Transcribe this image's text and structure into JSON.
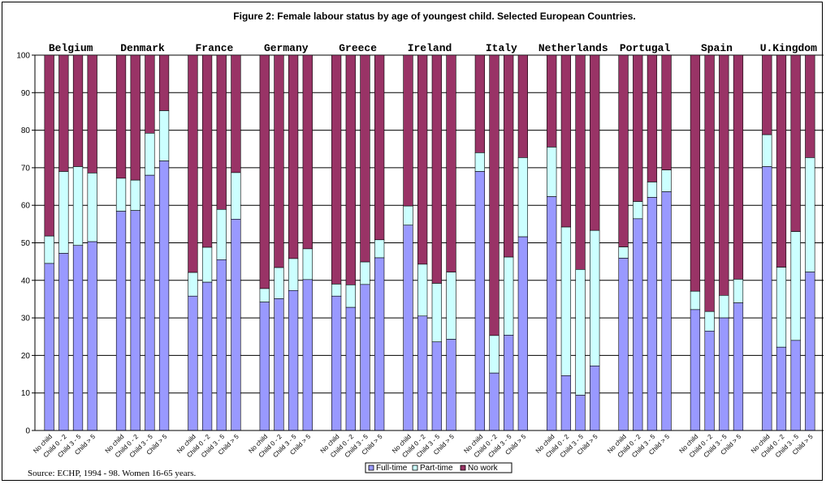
{
  "chart_data": {
    "type": "bar",
    "stacked": true,
    "title": "Figure 2: Female labour status by age of youngest child. Selected European Countries.",
    "ylim": [
      0,
      100
    ],
    "yticks": [
      0,
      10,
      20,
      30,
      40,
      50,
      60,
      70,
      80,
      90,
      100
    ],
    "grid": true,
    "categories": [
      "No child",
      "Child 0 - 2",
      "Child 3 - 5",
      "Child > 5"
    ],
    "legend_position": "bottom",
    "source": "Source: ECHP, 1994 - 98. Women 16-65 years.",
    "colors": {
      "Full-time": "#9999ff",
      "Part-time": "#ccffff",
      "No work": "#993366"
    },
    "series_names": [
      "Full-time",
      "Part-time",
      "No work"
    ],
    "groups": [
      {
        "name": "Belgium",
        "fulltime": [
          44.5,
          47.2,
          49.3,
          50.3
        ],
        "parttime": [
          7.3,
          21.8,
          21.0,
          18.3
        ]
      },
      {
        "name": "Denmark",
        "fulltime": [
          58.4,
          58.6,
          68.0,
          71.8
        ],
        "parttime": [
          8.8,
          8.1,
          11.2,
          13.4
        ]
      },
      {
        "name": "France",
        "fulltime": [
          35.8,
          39.5,
          45.5,
          56.3
        ],
        "parttime": [
          6.3,
          9.3,
          13.4,
          12.4
        ]
      },
      {
        "name": "Germany",
        "fulltime": [
          34.2,
          35.1,
          37.3,
          40.2
        ],
        "parttime": [
          3.6,
          8.3,
          8.5,
          8.2
        ]
      },
      {
        "name": "Greece",
        "fulltime": [
          35.8,
          32.8,
          38.9,
          46.0
        ],
        "parttime": [
          3.2,
          6.0,
          6.0,
          4.8
        ]
      },
      {
        "name": "Ireland",
        "fulltime": [
          54.7,
          30.5,
          23.6,
          24.3
        ],
        "parttime": [
          5.1,
          13.8,
          15.6,
          17.9
        ]
      },
      {
        "name": "Italy",
        "fulltime": [
          69.0,
          15.3,
          25.4,
          51.6
        ],
        "parttime": [
          5.0,
          10.0,
          20.8,
          21.1
        ]
      },
      {
        "name": "Netherlands",
        "fulltime": [
          62.3,
          14.6,
          9.4,
          17.2
        ],
        "parttime": [
          13.2,
          39.6,
          33.5,
          36.1
        ]
      },
      {
        "name": "Portugal",
        "fulltime": [
          45.9,
          56.4,
          62.1,
          63.6
        ],
        "parttime": [
          3.0,
          4.6,
          4.1,
          5.8
        ]
      },
      {
        "name": "Spain",
        "fulltime": [
          32.2,
          26.5,
          30.0,
          34.0
        ],
        "parttime": [
          4.9,
          5.2,
          6.0,
          6.3
        ]
      },
      {
        "name": "U.Kingdom",
        "fulltime": [
          70.3,
          22.2,
          24.0,
          42.2
        ],
        "parttime": [
          8.5,
          21.3,
          29.0,
          30.5
        ]
      }
    ]
  }
}
